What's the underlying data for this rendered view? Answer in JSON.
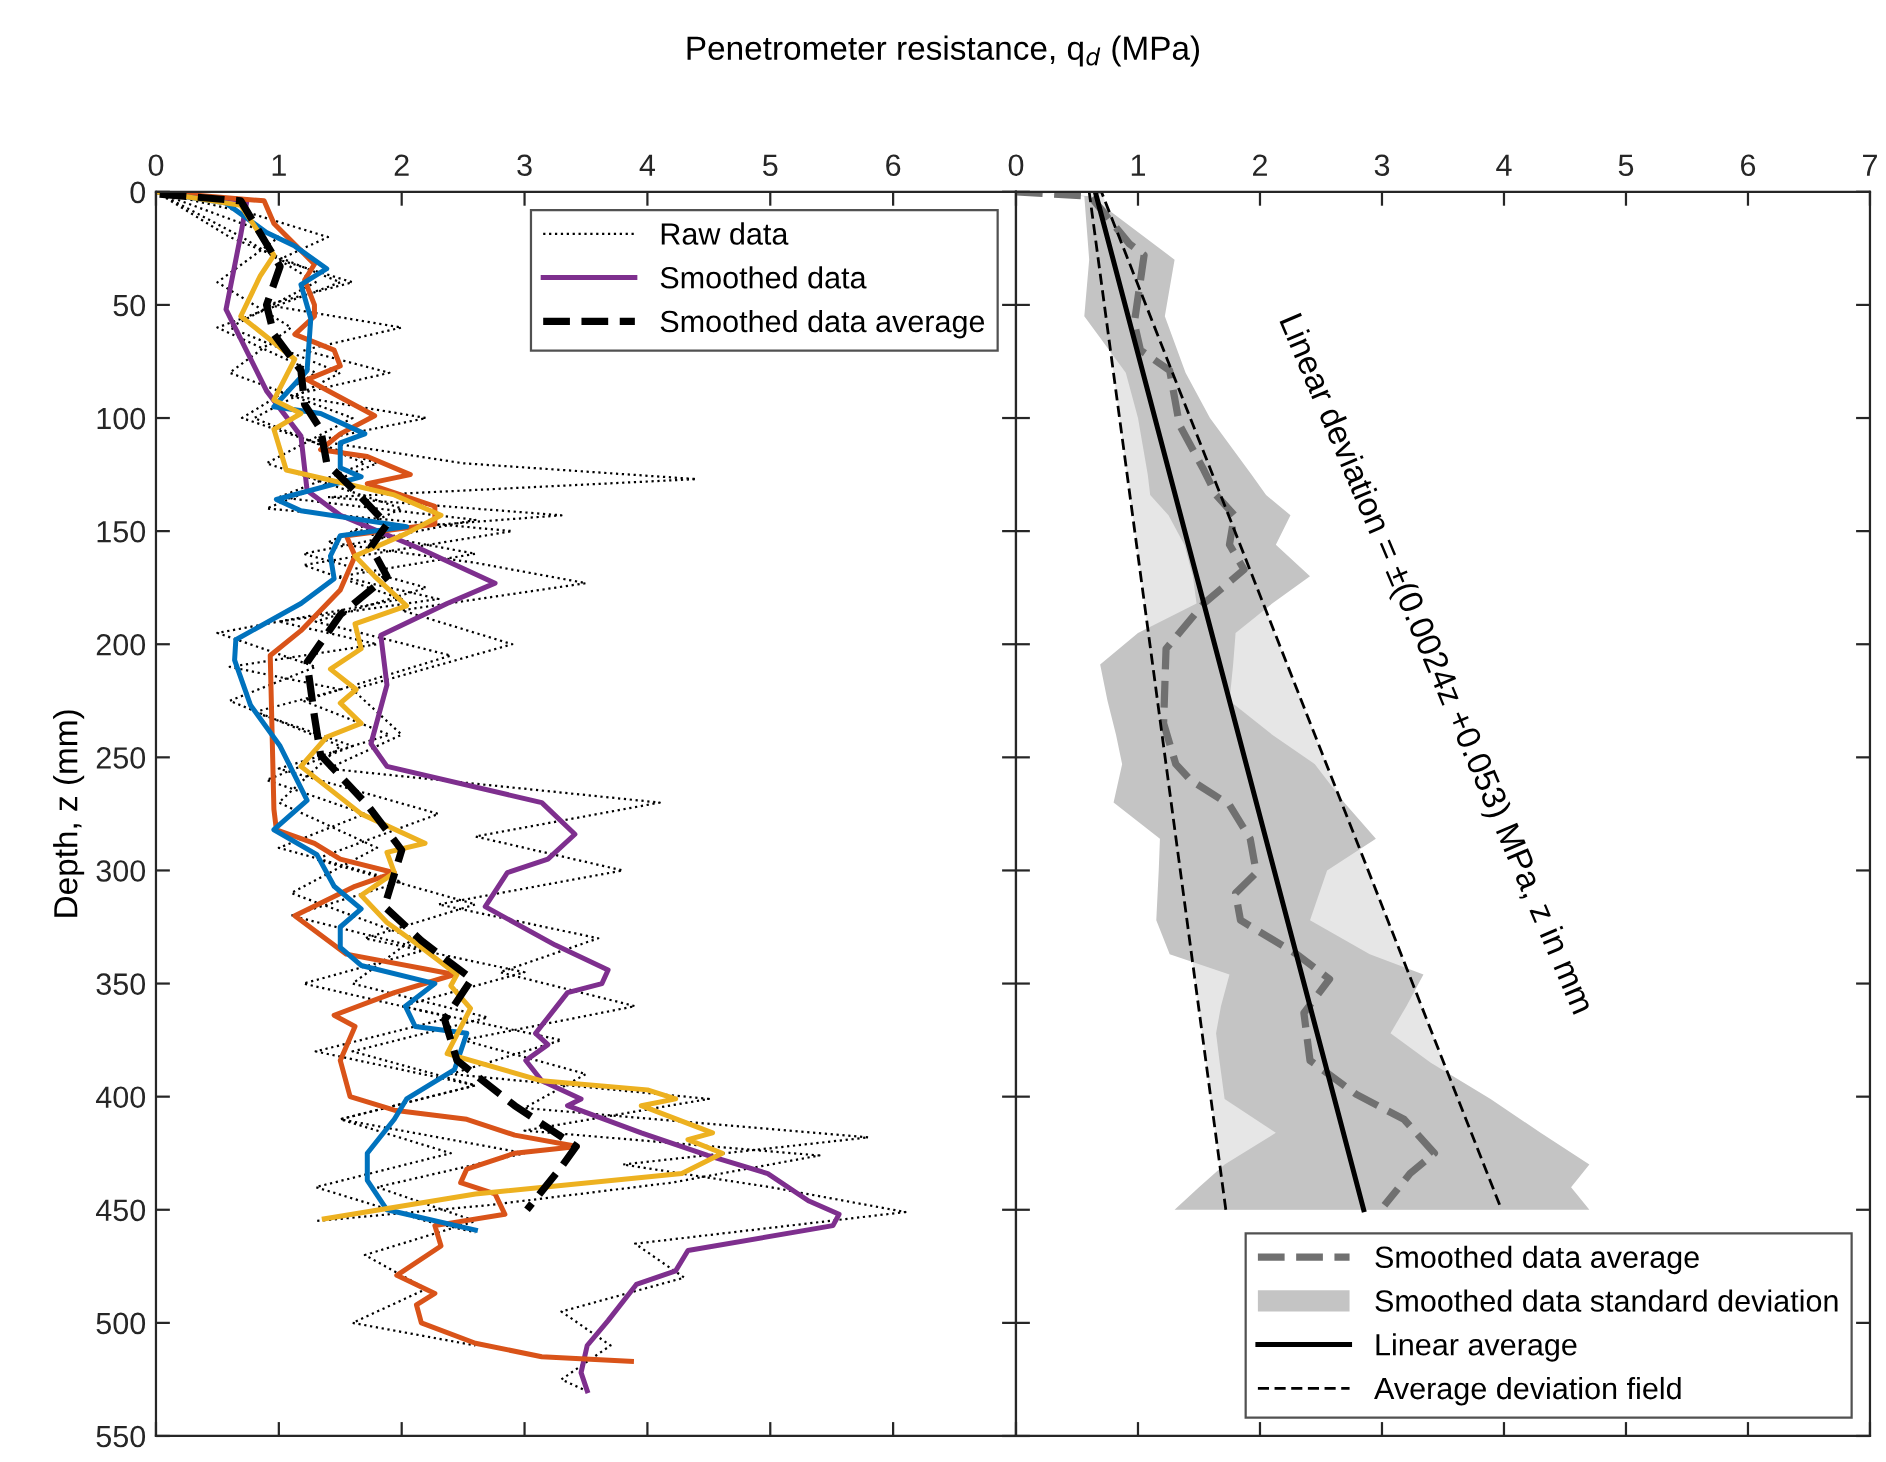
{
  "chart_data": [
    {
      "type": "line",
      "orientation": "horizontal",
      "xlabel": "Penetrometer resistance, q$_{d}$ (MPa)",
      "ylabel": "Depth, z (mm)",
      "xlim": [
        0,
        7
      ],
      "xticks": [
        0,
        1,
        2,
        3,
        4,
        5,
        6
      ],
      "ylim": [
        550,
        0
      ],
      "yticks": [
        0,
        50,
        100,
        150,
        200,
        250,
        300,
        350,
        400,
        450,
        500,
        550
      ],
      "grid": false,
      "legend": "top right",
      "series": [
        {
          "name": "Raw data",
          "color": "#000000",
          "line_style": "dotted",
          "x": [
            0,
            10,
            20,
            30,
            40,
            50,
            60,
            70,
            80,
            90,
            100,
            110,
            120,
            127,
            135,
            143,
            150,
            160,
            170,
            180,
            190,
            200,
            210,
            220,
            230,
            245,
            260,
            275,
            290,
            305,
            320,
            335,
            350,
            365,
            380,
            395,
            410,
            425,
            440,
            455,
            470,
            485,
            500,
            510
          ],
          "values": [
            0,
            0.8,
            1.4,
            1.0,
            1.6,
            0.9,
            2.0,
            1.2,
            1.9,
            1.1,
            2.2,
            1.3,
            2.5,
            4.4,
            1.4,
            3.3,
            1.6,
            2.6,
            1.5,
            2.3,
            1.0,
            1.8,
            0.6,
            1.5,
            0.8,
            1.6,
            0.9,
            1.7,
            1.0,
            2.0,
            1.1,
            2.2,
            1.2,
            2.4,
            1.3,
            2.6,
            1.5,
            3.0,
            1.8,
            2.6,
            1.7,
            2.2,
            1.6,
            2.6
          ]
        },
        {
          "color": "#000000",
          "line_style": "dotted",
          "x": [
            0,
            20,
            40,
            60,
            80,
            100,
            120,
            140,
            155,
            164,
            173,
            185,
            200,
            220,
            240,
            255,
            270,
            285,
            300,
            315,
            330,
            345,
            360,
            375,
            390,
            405,
            418,
            430,
            440,
            451,
            465,
            480,
            495,
            510,
            525,
            530
          ],
          "values": [
            0,
            1.0,
            0.5,
            1.1,
            0.6,
            1.6,
            0.9,
            2.0,
            1.4,
            2.6,
            3.5,
            2.0,
            2.9,
            1.6,
            2.0,
            1.4,
            4.1,
            2.6,
            3.8,
            2.3,
            3.6,
            2.8,
            3.9,
            2.5,
            3.5,
            3.0,
            5.8,
            3.8,
            5.0,
            6.1,
            3.9,
            4.3,
            3.3,
            3.7,
            3.3,
            3.5
          ]
        },
        {
          "color": "#000000",
          "line_style": "dotted",
          "x": [
            0,
            20,
            40,
            60,
            80,
            100,
            120,
            140,
            150,
            165,
            180,
            195,
            210,
            225,
            245,
            270,
            290,
            310,
            330,
            350,
            365,
            380,
            395,
            410,
            425,
            440,
            455,
            460
          ],
          "values": [
            0,
            0.6,
            1.5,
            0.5,
            1.3,
            0.7,
            1.8,
            0.9,
            2.9,
            1.2,
            2.0,
            0.5,
            1.3,
            0.6,
            1.5,
            1.0,
            1.8,
            1.1,
            2.1,
            1.6,
            2.7,
            1.6,
            2.6,
            1.5,
            2.4,
            1.3,
            2.2,
            2.6
          ]
        },
        {
          "color": "#000000",
          "line_style": "dotted",
          "x": [
            0,
            20,
            40,
            60,
            80,
            100,
            120,
            135,
            145,
            160,
            175,
            190,
            205,
            225,
            240,
            255,
            275,
            295,
            315,
            330,
            345,
            360,
            375,
            390,
            401,
            415,
            426,
            438,
            448,
            455
          ],
          "values": [
            0,
            0.7,
            1.3,
            0.6,
            1.5,
            0.8,
            1.7,
            1.0,
            2.6,
            1.2,
            2.2,
            1.3,
            2.4,
            1.2,
            1.9,
            1.0,
            2.3,
            1.3,
            2.6,
            1.7,
            3.0,
            2.0,
            3.3,
            2.4,
            4.5,
            3.0,
            5.4,
            4.2,
            2.7,
            1.3
          ]
        },
        {
          "name": "Smoothed data",
          "color": "#7e2f8e",
          "line_style": "solid",
          "x": [
            0,
            4,
            19,
            52,
            88,
            108,
            132,
            143,
            158,
            173,
            182,
            196,
            218,
            244,
            254,
            270,
            284,
            295,
            301,
            316,
            333,
            344,
            350,
            354,
            372,
            377,
            384,
            393,
            401,
            404,
            416,
            426,
            434,
            446,
            452,
            457,
            468,
            477,
            483,
            499,
            510,
            522,
            530
          ],
          "values": [
            0,
            0.74,
            0.69,
            0.57,
            0.9,
            1.18,
            1.23,
            1.5,
            2.16,
            2.76,
            2.37,
            1.83,
            1.88,
            1.75,
            1.88,
            3.14,
            3.41,
            3.19,
            2.86,
            2.68,
            3.25,
            3.68,
            3.63,
            3.35,
            3.09,
            3.19,
            3.01,
            3.14,
            3.46,
            3.35,
            3.95,
            4.49,
            4.98,
            5.31,
            5.56,
            5.51,
            4.33,
            4.23,
            3.91,
            3.68,
            3.51,
            3.46,
            3.51
          ]
        },
        {
          "color": "#d95319",
          "line_style": "solid",
          "x": [
            0,
            4,
            14,
            26,
            32,
            39,
            50,
            55,
            63,
            70,
            77,
            83,
            99,
            107,
            114,
            117,
            125,
            129,
            139,
            147,
            152,
            161,
            176,
            194,
            205,
            273,
            282,
            288,
            295,
            301,
            307,
            320,
            337,
            346,
            354,
            364,
            369,
            384,
            400,
            406,
            410,
            417,
            422,
            425,
            432,
            438,
            443,
            452,
            457,
            466,
            479,
            487,
            492,
            500,
            509,
            515,
            517
          ],
          "values": [
            0,
            0.88,
            0.96,
            1.18,
            1.29,
            1.21,
            1.29,
            1.29,
            1.13,
            1.45,
            1.5,
            1.23,
            1.78,
            1.5,
            1.34,
            1.72,
            2.07,
            1.72,
            2.27,
            2.27,
            1.55,
            1.62,
            1.5,
            1.18,
            0.93,
            0.96,
            0.98,
            1.29,
            1.5,
            1.94,
            1.62,
            1.13,
            1.55,
            2.43,
            1.94,
            1.45,
            1.62,
            1.5,
            1.58,
            1.94,
            2.53,
            2.92,
            3.43,
            2.92,
            2.53,
            2.48,
            2.76,
            2.84,
            2.27,
            2.32,
            1.96,
            2.27,
            2.12,
            2.16,
            2.6,
            3.14,
            3.87
          ]
        },
        {
          "color": "#0072bd",
          "line_style": "solid",
          "x": [
            0,
            5,
            18,
            24,
            34,
            41,
            56,
            79,
            95,
            98,
            107,
            111,
            122,
            126,
            136,
            141,
            148,
            152,
            161,
            171,
            182,
            198,
            207,
            227,
            245,
            269,
            282,
            293,
            307,
            317,
            325,
            334,
            342,
            350,
            360,
            369,
            372,
            388,
            401,
            410,
            425,
            437,
            450,
            459
          ],
          "values": [
            0,
            0.57,
            0.9,
            1.13,
            1.39,
            1.18,
            1.26,
            1.23,
            0.96,
            1.34,
            1.7,
            1.5,
            1.5,
            1.67,
            0.98,
            1.18,
            2.04,
            1.5,
            1.42,
            1.45,
            1.18,
            0.65,
            0.64,
            0.77,
            1.01,
            1.23,
            0.96,
            1.31,
            1.45,
            1.67,
            1.5,
            1.5,
            1.67,
            2.27,
            2.03,
            2.11,
            2.53,
            2.43,
            2.04,
            1.94,
            1.72,
            1.72,
            1.88,
            2.6
          ]
        },
        {
          "color": "#edb120",
          "line_style": "solid",
          "x": [
            0,
            6,
            28,
            37,
            55,
            74,
            92,
            98,
            105,
            123,
            134,
            143,
            151,
            161,
            170,
            183,
            191,
            202,
            211,
            220,
            226,
            235,
            241,
            254,
            275,
            288,
            292,
            301,
            311,
            323,
            332,
            346,
            351,
            361,
            381,
            393,
            397,
            401,
            404,
            416,
            419,
            425,
            434,
            443,
            454
          ],
          "values": [
            0,
            0.69,
            0.96,
            0.85,
            0.69,
            1.13,
            0.96,
            1.18,
            0.96,
            1.06,
            1.94,
            2.32,
            2.04,
            1.62,
            1.78,
            2.04,
            1.62,
            1.67,
            1.42,
            1.63,
            1.5,
            1.67,
            1.39,
            1.18,
            1.67,
            2.19,
            1.88,
            1.94,
            1.67,
            1.88,
            2.11,
            2.45,
            2.4,
            2.56,
            2.37,
            3.14,
            4.0,
            4.23,
            3.95,
            4.53,
            4.33,
            4.61,
            4.28,
            2.6,
            1.37
          ]
        },
        {
          "name": "Smoothed data average",
          "color": "#000000",
          "line_style": "dashed",
          "x": [
            1,
            4,
            33,
            50,
            63,
            79,
            94,
            105,
            120,
            135,
            147,
            157,
            170,
            187,
            208,
            232,
            249,
            271,
            291,
            316,
            331,
            348,
            366,
            384,
            404,
            422,
            431,
            450
          ],
          "values": [
            0.03,
            0.69,
            1.01,
            0.9,
            0.96,
            1.18,
            1.21,
            1.34,
            1.39,
            1.67,
            1.88,
            1.75,
            1.88,
            1.5,
            1.23,
            1.29,
            1.34,
            1.72,
            2.0,
            1.86,
            2.16,
            2.57,
            2.35,
            2.45,
            2.92,
            3.42,
            3.3,
            3.02
          ]
        }
      ]
    },
    {
      "type": "line",
      "orientation": "horizontal",
      "xlim": [
        0,
        7
      ],
      "xticks": [
        0,
        1,
        2,
        3,
        4,
        5,
        6,
        7
      ],
      "ylim": [
        550,
        0
      ],
      "yticks": [
        0,
        50,
        100,
        150,
        200,
        250,
        300,
        350,
        400,
        450,
        500,
        550
      ],
      "tick_labels": "x",
      "grid": false,
      "legend": "bottom right",
      "annotations": [
        "Linear deviation = ±(0.0024z +0.053) MPa, z in mm"
      ],
      "series": [
        {
          "color": "#e6e6e6",
          "x": [
            0,
            450
          ],
          "values": [
            null,
            null
          ],
          "lower": [
            0.6,
            1.72
          ],
          "upper": [
            0.7,
            3.98
          ]
        },
        {
          "name": "Smoothed data average",
          "color": "#707070",
          "line_style": "dashed",
          "x": [
            0,
            2,
            23,
            28,
            58,
            70,
            79,
            103,
            123,
            134,
            143,
            156,
            167,
            182,
            202,
            235,
            253,
            260,
            271,
            286,
            301,
            310,
            322,
            337,
            348,
            363,
            384,
            399,
            410,
            425,
            434,
            448
          ],
          "values": [
            0,
            0.61,
            0.93,
            1.05,
            0.97,
            1.02,
            1.26,
            1.34,
            1.54,
            1.64,
            1.79,
            1.75,
            1.87,
            1.54,
            1.23,
            1.21,
            1.31,
            1.43,
            1.75,
            1.92,
            1.97,
            1.8,
            1.84,
            2.3,
            2.57,
            2.36,
            2.41,
            2.79,
            3.18,
            3.43,
            3.23,
            3.02
          ]
        },
        {
          "name": "Smoothed data standard deviation",
          "color": "#c4c4c4",
          "x": [
            0,
            2,
            30,
            55,
            80,
            100,
            125,
            134,
            143,
            156,
            170,
            182,
            195,
            209,
            225,
            240,
            253,
            270,
            286,
            300,
            322,
            337,
            346,
            360,
            372,
            385,
            401,
            416,
            430,
            440,
            450
          ],
          "lower": [
            0,
            0.56,
            0.6,
            0.56,
            0.9,
            1.0,
            1.08,
            1.1,
            1.25,
            1.38,
            1.45,
            1.48,
            1.0,
            0.69,
            0.75,
            0.82,
            0.87,
            0.8,
            1.18,
            1.17,
            1.15,
            1.26,
            1.75,
            1.68,
            1.64,
            1.67,
            1.71,
            2.13,
            1.71,
            1.5,
            1.3
          ],
          "values": [
            null,
            null,
            null,
            null,
            null,
            null,
            null,
            null,
            null,
            null,
            null,
            null,
            null,
            null,
            null,
            null,
            null,
            null,
            null,
            null,
            null,
            null,
            null,
            null,
            null,
            null,
            null,
            null,
            null,
            null,
            null
          ],
          "upper": [
            0,
            0.61,
            1.3,
            1.22,
            1.39,
            1.59,
            1.93,
            2.05,
            2.25,
            2.13,
            2.41,
            2.1,
            1.8,
            1.78,
            1.75,
            2.1,
            2.45,
            2.69,
            2.95,
            2.55,
            2.41,
            2.9,
            3.34,
            3.2,
            3.07,
            3.4,
            3.89,
            4.3,
            4.7,
            4.55,
            4.7
          ]
        },
        {
          "name": "Linear average",
          "color": "#000000",
          "line_style": "solid",
          "x": [
            0,
            450
          ],
          "values": [
            0.65,
            2.85
          ]
        },
        {
          "name": "Average deviation field",
          "color": "#000000",
          "line_style": "dashed",
          "x": [
            450,
            0,
            0,
            450
          ],
          "values": [
            1.72,
            0.6,
            0.7,
            3.98
          ]
        }
      ]
    }
  ]
}
